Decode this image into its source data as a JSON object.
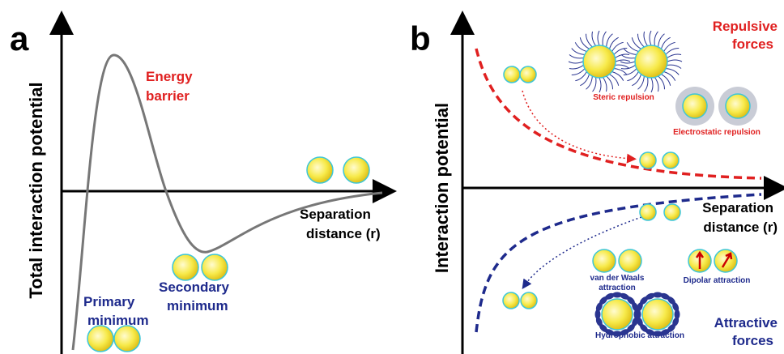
{
  "panel_a": {
    "letter": "a",
    "y_axis_label": "Total interaction potential",
    "energy_barrier": [
      "Energy",
      "barrier"
    ],
    "x_axis_label": [
      "Separation",
      "distance (r)"
    ],
    "primary_minimum": [
      "Primary",
      "minimum"
    ],
    "secondary_minimum": [
      "Secondary",
      "minimum"
    ]
  },
  "panel_b": {
    "letter": "b",
    "y_axis_label": "Interaction potential",
    "repulsive_forces": [
      "Repulsive",
      "forces"
    ],
    "steric_repulsion": "Steric repulsion",
    "electrostatic_repulsion": "Electrostatic repulsion",
    "x_axis_label": [
      "Separation",
      "distance (r)"
    ],
    "van_der_waals": [
      "van der Waals",
      "attraction"
    ],
    "dipolar_attraction": "Dipolar attraction",
    "hydrophobic_attraction": "Hydrophobic attraction",
    "attractive_forces": [
      "Attractive",
      "forces"
    ]
  }
}
